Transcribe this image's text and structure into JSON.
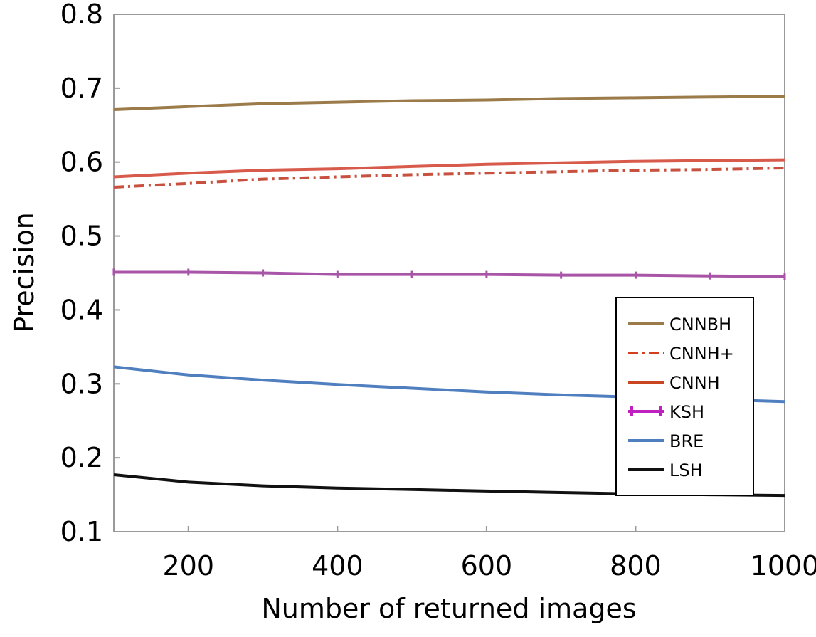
{
  "chart_data": {
    "type": "line",
    "xlabel": "Number of returned images",
    "ylabel": "Precision",
    "xlim": [
      100,
      1000
    ],
    "ylim": [
      0.1,
      0.8
    ],
    "xticks": [
      200,
      400,
      600,
      800,
      1000
    ],
    "yticks": [
      0.1,
      0.2,
      0.3,
      0.4,
      0.5,
      0.6,
      0.7,
      0.8
    ],
    "xtick_labels": [
      "200",
      "400",
      "600",
      "800",
      "1000"
    ],
    "ytick_labels": [
      "0.1",
      "0.2",
      "0.3",
      "0.4",
      "0.5",
      "0.6",
      "0.7",
      "0.8"
    ],
    "grid": false,
    "legend_position": "right",
    "x": [
      100,
      200,
      300,
      400,
      500,
      600,
      700,
      800,
      900,
      1000
    ],
    "series": [
      {
        "name": "CNNBH",
        "color": "#9b7b4a",
        "dash": "solid",
        "marker": "none",
        "values": [
          0.671,
          0.675,
          0.679,
          0.681,
          0.683,
          0.684,
          0.686,
          0.687,
          0.688,
          0.689
        ]
      },
      {
        "name": "CNNH+",
        "color": "#c8503f",
        "dash": "dashdot",
        "marker": "none",
        "values": [
          0.566,
          0.571,
          0.577,
          0.58,
          0.583,
          0.585,
          0.587,
          0.589,
          0.59,
          0.592
        ]
      },
      {
        "name": "CNNH",
        "color": "#d75a4a",
        "dash": "solid",
        "marker": "none",
        "values": [
          0.58,
          0.585,
          0.589,
          0.591,
          0.594,
          0.597,
          0.599,
          0.601,
          0.602,
          0.603
        ]
      },
      {
        "name": "KSH",
        "color": "#a855a8",
        "dash": "solid",
        "marker": "plus",
        "values": [
          0.451,
          0.451,
          0.45,
          0.448,
          0.448,
          0.448,
          0.447,
          0.447,
          0.446,
          0.445
        ]
      },
      {
        "name": "BRE",
        "color": "#4f7fbf",
        "dash": "solid",
        "marker": "none",
        "values": [
          0.323,
          0.312,
          0.305,
          0.299,
          0.294,
          0.289,
          0.285,
          0.282,
          0.279,
          0.276
        ]
      },
      {
        "name": "LSH",
        "color": "#111111",
        "dash": "solid",
        "marker": "none",
        "values": [
          0.177,
          0.167,
          0.162,
          0.159,
          0.157,
          0.155,
          0.153,
          0.151,
          0.15,
          0.149
        ]
      }
    ],
    "legend_entries": [
      {
        "label": "CNNBH",
        "color": "#9b7b4a",
        "dash": "solid",
        "marker": "none"
      },
      {
        "label": "CNNH+",
        "color": "#d4401f",
        "dash": "dashdot",
        "marker": "none"
      },
      {
        "label": "CNNH",
        "color": "#c8451f",
        "dash": "solid",
        "marker": "none"
      },
      {
        "label": "KSH",
        "color": "#c020c0",
        "dash": "solid",
        "marker": "plus"
      },
      {
        "label": "BRE",
        "color": "#4f7fbf",
        "dash": "solid",
        "marker": "none"
      },
      {
        "label": "LSH",
        "color": "#111111",
        "dash": "solid",
        "marker": "none"
      }
    ]
  }
}
